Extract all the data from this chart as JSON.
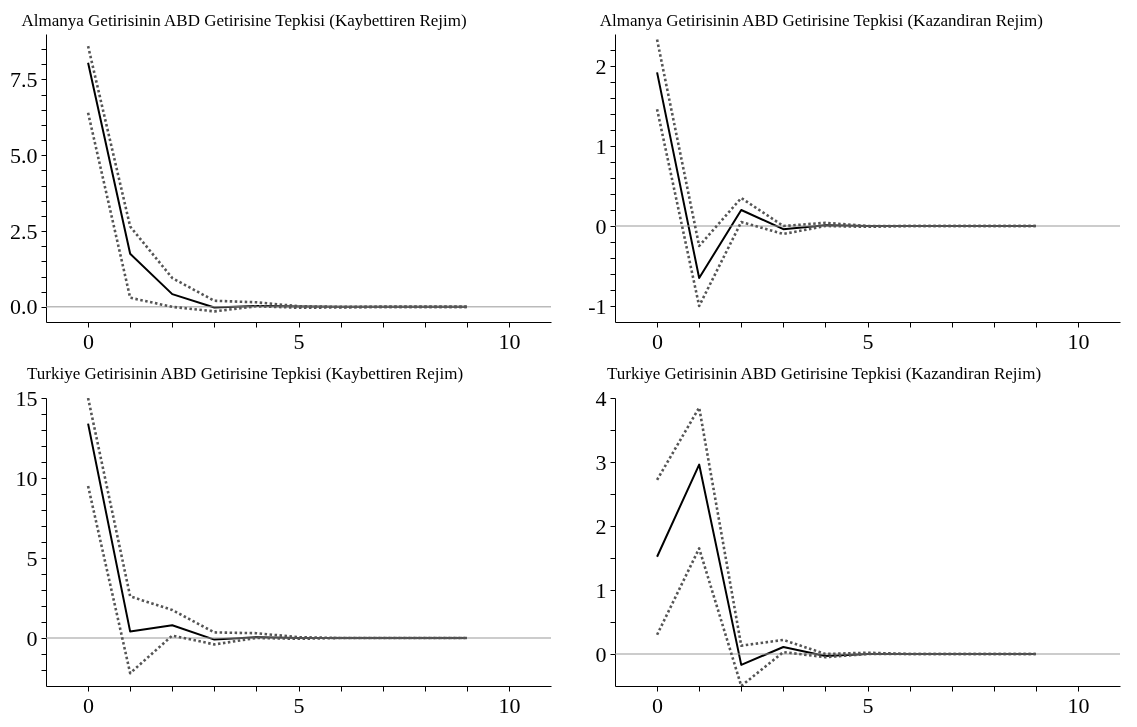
{
  "chart_data": [
    {
      "type": "line",
      "title": "Almanya Getirisinin  ABD Getirisine Tepkisi (Kaybettiren Rejim)",
      "x": [
        0,
        1,
        2,
        3,
        4,
        5,
        6,
        7,
        8,
        9
      ],
      "xlim": [
        -1,
        11
      ],
      "xticks": [
        0,
        {
          "value": 1,
          "label": null
        },
        {
          "value": 2,
          "label": null
        },
        {
          "value": 3,
          "label": null
        },
        {
          "value": 4,
          "label": null
        },
        5,
        {
          "value": 6,
          "label": null
        },
        {
          "value": 7,
          "label": null
        },
        {
          "value": 8,
          "label": null
        },
        {
          "value": 9,
          "label": null
        },
        10
      ],
      "ylim": [
        -0.5,
        9
      ],
      "yticks": [
        {
          "value": 0,
          "label": "0.0"
        },
        {
          "value": 0.5,
          "label": null
        },
        {
          "value": 1,
          "label": null
        },
        {
          "value": 1.5,
          "label": null
        },
        {
          "value": 2,
          "label": null
        },
        2.5,
        {
          "value": 3,
          "label": null
        },
        {
          "value": 3.5,
          "label": null
        },
        {
          "value": 4,
          "label": null
        },
        {
          "value": 4.5,
          "label": null
        },
        {
          "value": 5,
          "label": "5.0"
        },
        {
          "value": 5.5,
          "label": null
        },
        {
          "value": 6,
          "label": null
        },
        {
          "value": 6.5,
          "label": null
        },
        {
          "value": 7,
          "label": null
        },
        7.5,
        {
          "value": 8,
          "label": null
        },
        {
          "value": 8.5,
          "label": null
        }
      ],
      "grid": false,
      "ref_lines": [
        {
          "axis": "y",
          "value": 0,
          "color": "#999999"
        }
      ],
      "series": [
        {
          "color": "#000000",
          "line_style": "solid",
          "values": [
            8.05,
            1.75,
            0.42,
            -0.02,
            0.03,
            0.01,
            0,
            0,
            0,
            0
          ]
        },
        {
          "color": "#555555",
          "line_style": "dotted",
          "values": [
            8.6,
            2.65,
            0.95,
            0.2,
            0.15,
            0.02,
            0,
            0,
            0,
            0
          ]
        },
        {
          "color": "#555555",
          "line_style": "dotted",
          "values": [
            6.4,
            0.3,
            0,
            -0.15,
            0.02,
            -0.03,
            -0.02,
            0,
            0,
            0
          ]
        }
      ]
    },
    {
      "type": "line",
      "title": "Almanya Getirisinin  ABD Getirisine Tepkisi (Kazandiran Rejim)",
      "x": [
        0,
        1,
        2,
        3,
        4,
        5,
        6,
        7,
        8,
        9
      ],
      "xlim": [
        -1,
        11
      ],
      "xticks": [
        0,
        {
          "value": 1,
          "label": null
        },
        {
          "value": 2,
          "label": null
        },
        {
          "value": 3,
          "label": null
        },
        {
          "value": 4,
          "label": null
        },
        5,
        {
          "value": 6,
          "label": null
        },
        {
          "value": 7,
          "label": null
        },
        {
          "value": 8,
          "label": null
        },
        {
          "value": 9,
          "label": null
        },
        10
      ],
      "ylim": [
        -1.2,
        2.4
      ],
      "yticks": [
        -1,
        {
          "value": -0.8,
          "label": null
        },
        {
          "value": -0.6,
          "label": null
        },
        {
          "value": -0.4,
          "label": null
        },
        {
          "value": -0.2,
          "label": null
        },
        0,
        {
          "value": 0.2,
          "label": null
        },
        {
          "value": 0.4,
          "label": null
        },
        {
          "value": 0.6,
          "label": null
        },
        {
          "value": 0.8,
          "label": null
        },
        1,
        {
          "value": 1.2,
          "label": null
        },
        {
          "value": 1.4,
          "label": null
        },
        {
          "value": 1.6,
          "label": null
        },
        {
          "value": 1.8,
          "label": null
        },
        2,
        {
          "value": 2.2,
          "label": null
        }
      ],
      "grid": false,
      "ref_lines": [
        {
          "axis": "y",
          "value": 0,
          "color": "#999999"
        }
      ],
      "series": [
        {
          "color": "#000000",
          "line_style": "solid",
          "values": [
            1.92,
            -0.65,
            0.2,
            -0.04,
            0.01,
            0,
            0,
            0,
            0,
            0
          ]
        },
        {
          "color": "#555555",
          "line_style": "dotted",
          "values": [
            2.33,
            -0.25,
            0.35,
            0,
            0.04,
            0,
            0,
            0,
            0,
            0
          ]
        },
        {
          "color": "#555555",
          "line_style": "dotted",
          "values": [
            1.46,
            -1,
            0.05,
            -0.1,
            0,
            -0.01,
            0,
            0,
            0,
            0
          ]
        }
      ]
    },
    {
      "type": "line",
      "title": "Turkiye Getirisinin  ABD Getirisine Tepkisi (Kaybettiren Rejim)",
      "x": [
        0,
        1,
        2,
        3,
        4,
        5,
        6,
        7,
        8,
        9
      ],
      "xlim": [
        -1,
        11
      ],
      "xticks": [
        0,
        {
          "value": 1,
          "label": null
        },
        {
          "value": 2,
          "label": null
        },
        {
          "value": 3,
          "label": null
        },
        {
          "value": 4,
          "label": null
        },
        5,
        {
          "value": 6,
          "label": null
        },
        {
          "value": 7,
          "label": null
        },
        {
          "value": 8,
          "label": null
        },
        {
          "value": 9,
          "label": null
        },
        10
      ],
      "ylim": [
        -3,
        15
      ],
      "yticks": [
        {
          "value": -2,
          "label": null
        },
        {
          "value": -1,
          "label": null
        },
        0,
        {
          "value": 1,
          "label": null
        },
        {
          "value": 2,
          "label": null
        },
        {
          "value": 3,
          "label": null
        },
        {
          "value": 4,
          "label": null
        },
        5,
        {
          "value": 6,
          "label": null
        },
        {
          "value": 7,
          "label": null
        },
        {
          "value": 8,
          "label": null
        },
        {
          "value": 9,
          "label": null
        },
        10,
        {
          "value": 11,
          "label": null
        },
        {
          "value": 12,
          "label": null
        },
        {
          "value": 13,
          "label": null
        },
        {
          "value": 14,
          "label": null
        },
        15
      ],
      "grid": false,
      "ref_lines": [
        {
          "axis": "y",
          "value": 0,
          "color": "#999999"
        }
      ],
      "series": [
        {
          "color": "#000000",
          "line_style": "solid",
          "values": [
            13.4,
            0.4,
            0.8,
            -0.1,
            0.05,
            0,
            0,
            0,
            0,
            0
          ]
        },
        {
          "color": "#555555",
          "line_style": "dotted",
          "values": [
            15,
            2.6,
            1.75,
            0.35,
            0.3,
            0.05,
            0,
            0,
            0,
            0
          ]
        },
        {
          "color": "#555555",
          "line_style": "dotted",
          "values": [
            9.5,
            -2.2,
            0.15,
            -0.4,
            0,
            -0.05,
            0,
            0,
            0,
            0
          ]
        }
      ]
    },
    {
      "type": "line",
      "title": "Turkiye Getirisinin  ABD Getirisine Tepkisi (Kazandiran Rejim)",
      "x": [
        0,
        1,
        2,
        3,
        4,
        5,
        6,
        7,
        8,
        9
      ],
      "xlim": [
        -1,
        11
      ],
      "xticks": [
        0,
        {
          "value": 1,
          "label": null
        },
        {
          "value": 2,
          "label": null
        },
        {
          "value": 3,
          "label": null
        },
        {
          "value": 4,
          "label": null
        },
        5,
        {
          "value": 6,
          "label": null
        },
        {
          "value": 7,
          "label": null
        },
        {
          "value": 8,
          "label": null
        },
        {
          "value": 9,
          "label": null
        },
        10
      ],
      "ylim": [
        -0.5,
        4
      ],
      "yticks": [
        0,
        {
          "value": 0.5,
          "label": null
        },
        1,
        {
          "value": 1.5,
          "label": null
        },
        2,
        {
          "value": 2.5,
          "label": null
        },
        3,
        {
          "value": 3.5,
          "label": null
        },
        4
      ],
      "grid": false,
      "ref_lines": [
        {
          "axis": "y",
          "value": 0,
          "color": "#999999"
        }
      ],
      "series": [
        {
          "color": "#000000",
          "line_style": "solid",
          "values": [
            1.52,
            2.96,
            -0.17,
            0.11,
            -0.03,
            0,
            0,
            0,
            0,
            0
          ]
        },
        {
          "color": "#555555",
          "line_style": "dotted",
          "values": [
            2.72,
            3.85,
            0.13,
            0.22,
            0,
            0.02,
            0,
            0,
            0,
            0
          ]
        },
        {
          "color": "#555555",
          "line_style": "dotted",
          "values": [
            0.3,
            1.65,
            -0.5,
            0.03,
            -0.05,
            0,
            0,
            0,
            0,
            0
          ]
        }
      ]
    }
  ]
}
